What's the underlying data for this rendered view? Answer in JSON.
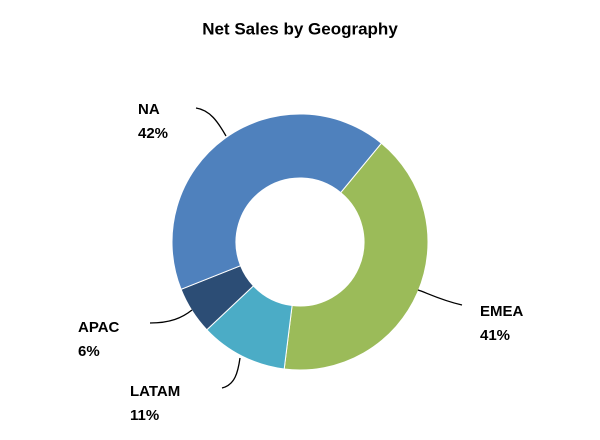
{
  "chart_data": {
    "type": "donut",
    "title": "Net Sales by Geography",
    "categories": [
      "EMEA",
      "LATAM",
      "APAC",
      "NA"
    ],
    "values": [
      41,
      11,
      6,
      42
    ],
    "value_labels": [
      "41%",
      "11%",
      "6%",
      "42%"
    ],
    "colors": [
      "#9bbb59",
      "#4bacc6",
      "#2c4d75",
      "#4f81bd"
    ]
  }
}
